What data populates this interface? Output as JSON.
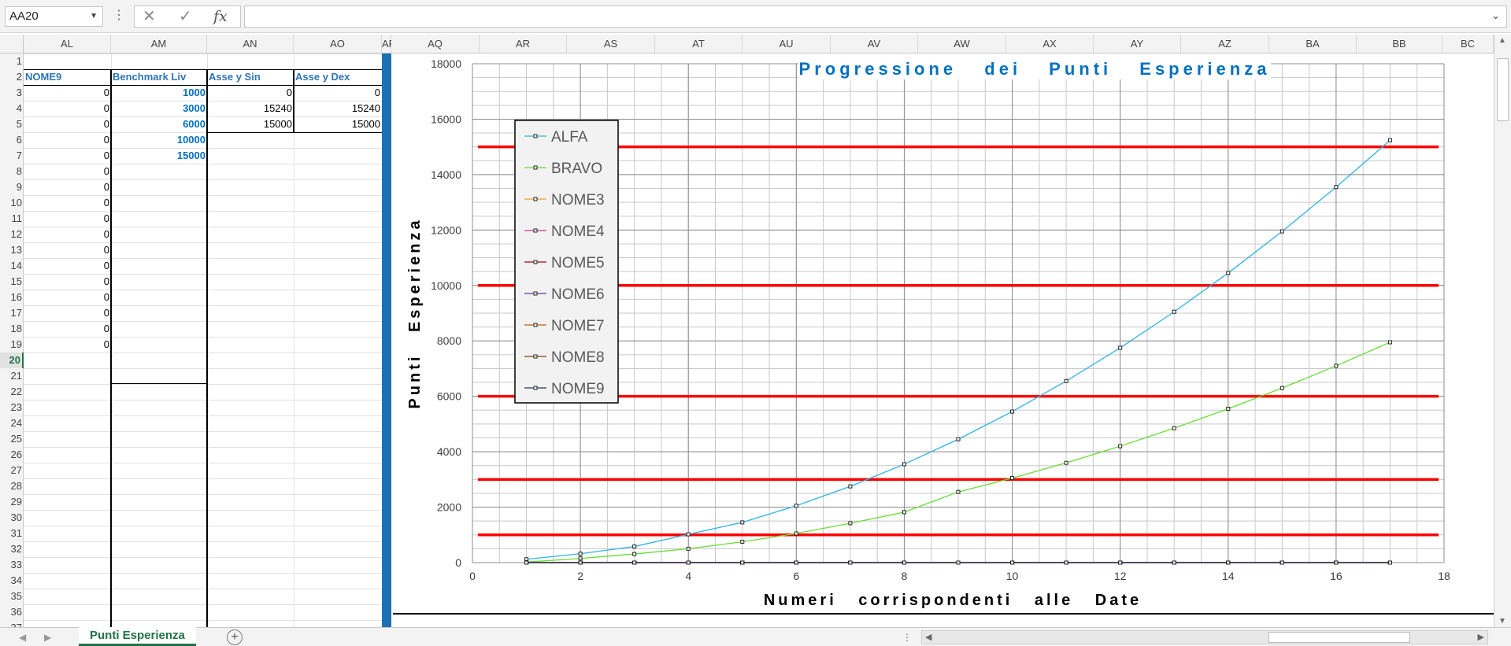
{
  "formula_bar": {
    "name_box": "AA20",
    "cancel_icon": "x-icon",
    "enter_icon": "check-icon",
    "fx_label": "fx",
    "formula_value": ""
  },
  "columns": [
    "AL",
    "AM",
    "AN",
    "AO",
    "AF",
    "AQ",
    "AR",
    "AS",
    "AT",
    "AU",
    "AV",
    "AW",
    "AX",
    "AY",
    "AZ",
    "BA",
    "BB",
    "BC"
  ],
  "rows": [
    "1",
    "2",
    "3",
    "4",
    "5",
    "6",
    "7",
    "8",
    "9",
    "10",
    "11",
    "12",
    "13",
    "14",
    "15",
    "16",
    "17",
    "18",
    "19",
    "20",
    "21",
    "22",
    "23",
    "24",
    "25",
    "26",
    "27",
    "28",
    "29",
    "30",
    "31",
    "32",
    "33",
    "34",
    "35",
    "36",
    "37"
  ],
  "selected_row": "20",
  "table": {
    "headers": [
      "NOME9",
      "Benchmark Liv",
      "Asse y Sin",
      "Asse y Dex"
    ],
    "nome9": [
      "0",
      "0",
      "0",
      "0",
      "0",
      "0",
      "0",
      "0",
      "0",
      "0",
      "0",
      "0",
      "0",
      "0",
      "0",
      "0",
      "0"
    ],
    "benchmark": [
      "1000",
      "3000",
      "6000",
      "10000",
      "15000"
    ],
    "asse_y_sin": [
      "0",
      "15240",
      "15000"
    ],
    "asse_y_dex": [
      "0",
      "15240",
      "15000"
    ]
  },
  "sheet_tab": "Punti Esperienza",
  "add_sheet_label": "+",
  "chart_data": {
    "type": "line",
    "title": "Progressione dei Punti Esperienza",
    "xlabel": "Numeri corrispondenti alle Date",
    "ylabel": "Punti Esperienza",
    "xlim": [
      0,
      18
    ],
    "ylim": [
      0,
      18000
    ],
    "xticks": [
      0,
      2,
      4,
      6,
      8,
      10,
      12,
      14,
      16,
      18
    ],
    "yticks": [
      0,
      2000,
      4000,
      6000,
      8000,
      10000,
      12000,
      14000,
      16000,
      18000
    ],
    "grid": true,
    "legend_position": "left",
    "benchmark_lines": [
      1000,
      3000,
      6000,
      10000,
      15000
    ],
    "benchmark_color": "#ff0000",
    "series": [
      {
        "name": "ALFA",
        "color": "#2fb2e6",
        "x": [
          1,
          2,
          3,
          4,
          5,
          6,
          7,
          8,
          9,
          10,
          11,
          12,
          13,
          14,
          15,
          16,
          17
        ],
        "y": [
          120,
          320,
          580,
          1020,
          1450,
          2050,
          2750,
          3550,
          4450,
          5450,
          6550,
          7750,
          9050,
          10450,
          11950,
          13550,
          15240
        ]
      },
      {
        "name": "BRAVO",
        "color": "#66dd33",
        "x": [
          1,
          2,
          3,
          4,
          5,
          6,
          7,
          8,
          9,
          10,
          11,
          12,
          13,
          14,
          15,
          16,
          17
        ],
        "y": [
          20,
          150,
          310,
          500,
          750,
          1050,
          1420,
          1820,
          2550,
          3050,
          3600,
          4200,
          4850,
          5550,
          6300,
          7100,
          7950
        ]
      },
      {
        "name": "NOME3",
        "color": "#f0a020",
        "x": [
          1,
          2,
          3,
          4,
          5,
          6,
          7,
          8,
          9,
          10,
          11,
          12,
          13,
          14,
          15,
          16,
          17
        ],
        "y": [
          0,
          0,
          0,
          0,
          0,
          0,
          0,
          0,
          0,
          0,
          0,
          0,
          0,
          0,
          0,
          0,
          0
        ]
      },
      {
        "name": "NOME4",
        "color": "#cc3399",
        "x": [
          1,
          2,
          3,
          4,
          5,
          6,
          7,
          8,
          9,
          10,
          11,
          12,
          13,
          14,
          15,
          16,
          17
        ],
        "y": [
          0,
          0,
          0,
          0,
          0,
          0,
          0,
          0,
          0,
          0,
          0,
          0,
          0,
          0,
          0,
          0,
          0
        ]
      },
      {
        "name": "NOME5",
        "color": "#c00000",
        "x": [
          1,
          2,
          3,
          4,
          5,
          6,
          7,
          8,
          9,
          10,
          11,
          12,
          13,
          14,
          15,
          16,
          17
        ],
        "y": [
          0,
          0,
          0,
          0,
          0,
          0,
          0,
          0,
          0,
          0,
          0,
          0,
          0,
          0,
          0,
          0,
          0
        ]
      },
      {
        "name": "NOME6",
        "color": "#7030a0",
        "x": [
          1,
          2,
          3,
          4,
          5,
          6,
          7,
          8,
          9,
          10,
          11,
          12,
          13,
          14,
          15,
          16,
          17
        ],
        "y": [
          0,
          0,
          0,
          0,
          0,
          0,
          0,
          0,
          0,
          0,
          0,
          0,
          0,
          0,
          0,
          0,
          0
        ]
      },
      {
        "name": "NOME7",
        "color": "#c55a11",
        "x": [
          1,
          2,
          3,
          4,
          5,
          6,
          7,
          8,
          9,
          10,
          11,
          12,
          13,
          14,
          15,
          16,
          17
        ],
        "y": [
          0,
          0,
          0,
          0,
          0,
          0,
          0,
          0,
          0,
          0,
          0,
          0,
          0,
          0,
          0,
          0,
          0
        ]
      },
      {
        "name": "NOME8",
        "color": "#7f3f00",
        "x": [
          1,
          2,
          3,
          4,
          5,
          6,
          7,
          8,
          9,
          10,
          11,
          12,
          13,
          14,
          15,
          16,
          17
        ],
        "y": [
          0,
          0,
          0,
          0,
          0,
          0,
          0,
          0,
          0,
          0,
          0,
          0,
          0,
          0,
          0,
          0,
          0
        ]
      },
      {
        "name": "NOME9",
        "color": "#1f3864",
        "x": [
          1,
          2,
          3,
          4,
          5,
          6,
          7,
          8,
          9,
          10,
          11,
          12,
          13,
          14,
          15,
          16,
          17
        ],
        "y": [
          0,
          0,
          0,
          0,
          0,
          0,
          0,
          0,
          0,
          0,
          0,
          0,
          0,
          0,
          0,
          0,
          0
        ]
      }
    ]
  }
}
